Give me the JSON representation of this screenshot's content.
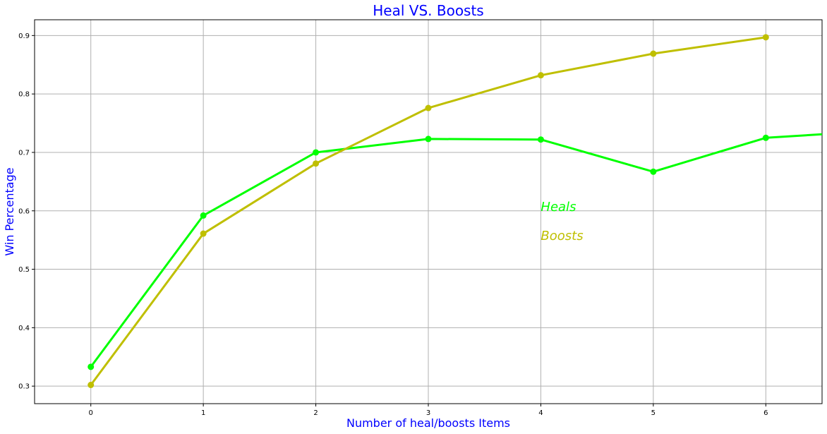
{
  "chart_data": {
    "type": "line",
    "title": "Heal VS. Boosts",
    "xlabel": "Number of heal/boosts Items",
    "ylabel": "Win Percentage",
    "x_ticks": [
      "0",
      "1",
      "2",
      "3",
      "4",
      "5",
      "6"
    ],
    "y_ticks": [
      "0.3",
      "0.4",
      "0.5",
      "0.6",
      "0.7",
      "0.8",
      "0.9"
    ],
    "xlim": [
      -0.5,
      6.5
    ],
    "ylim": [
      0.27,
      0.927
    ],
    "grid": true,
    "series": [
      {
        "name": "Heals",
        "color": "#00ff00",
        "x": [
          0,
          1,
          2,
          3,
          4,
          5,
          6,
          6.5
        ],
        "values": [
          0.333,
          0.592,
          0.7,
          0.723,
          0.722,
          0.667,
          0.725,
          0.731
        ]
      },
      {
        "name": "Boosts",
        "color": "#bfbf00",
        "x": [
          0,
          1,
          2,
          3,
          4,
          5,
          6
        ],
        "values": [
          0.302,
          0.561,
          0.681,
          0.776,
          0.832,
          0.869,
          0.897
        ]
      }
    ],
    "annotations": [
      {
        "text": "Heals",
        "x": 4,
        "y": 0.6,
        "color": "#00ff00"
      },
      {
        "text": "Boosts",
        "x": 4,
        "y": 0.55,
        "color": "#bfbf00"
      }
    ],
    "colors": {
      "title": "#0000ff",
      "axis_label": "#0000ff",
      "grid": "#b0b0b0"
    }
  }
}
